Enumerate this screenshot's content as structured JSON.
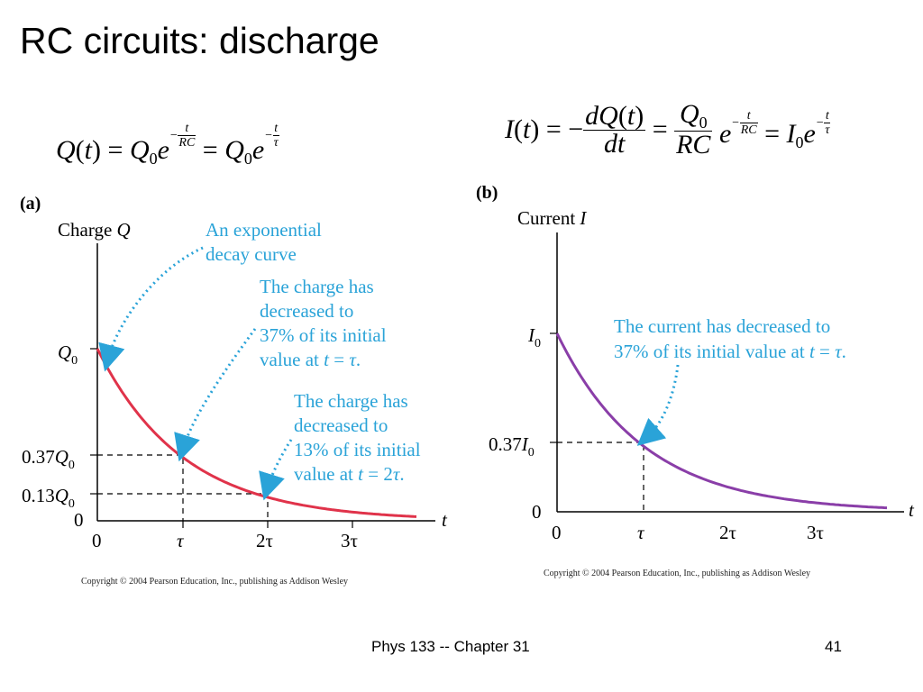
{
  "title": "RC circuits: discharge",
  "equations": {
    "charge_lhs": "Q(t) = Q",
    "current_lhs": "I(t) = −"
  },
  "panel_a": {
    "label": "(a)",
    "y_axis_label": "Charge",
    "y_axis_var": "Q",
    "x_axis_var": "t",
    "y_ticks": [
      "Q0",
      "0.37Q0",
      "0.13Q0",
      "0"
    ],
    "x_ticks": [
      "0",
      "τ",
      "2τ",
      "3τ"
    ],
    "annotations": [
      "An exponential decay curve",
      "The charge has decreased to 37% of its initial value at t = τ.",
      "The charge has decreased to 13% of its initial value at t = 2τ."
    ],
    "curve_color": "#e0334a",
    "copyright": "Copyright © 2004 Pearson Education, Inc., publishing as Addison Wesley"
  },
  "panel_b": {
    "label": "(b)",
    "y_axis_label": "Current",
    "y_axis_var": "I",
    "x_axis_var": "t",
    "y_ticks": [
      "I0",
      "0.37I0",
      "0"
    ],
    "x_ticks": [
      "0",
      "τ",
      "2τ",
      "3τ"
    ],
    "annotation": "The current has decreased to 37% of its initial value at t = τ.",
    "curve_color": "#8a3ea8",
    "copyright": "Copyright © 2004 Pearson Education, Inc., publishing as Addison Wesley"
  },
  "annotation_color": "#2aa3d8",
  "footer": {
    "course": "Phys 133 -- Chapter 31",
    "page": "41"
  }
}
